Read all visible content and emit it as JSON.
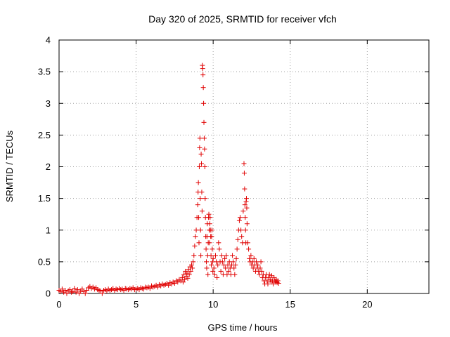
{
  "chart_data": {
    "type": "scatter",
    "title": "Day 320 of 2025, SRMTID for receiver vfch",
    "xlabel": "GPS time / hours",
    "ylabel": "SRMTID / TECUs",
    "xlim": [
      0,
      24
    ],
    "ylim": [
      0,
      4
    ],
    "xticks": [
      0,
      5,
      10,
      15,
      20
    ],
    "yticks": [
      0,
      0.5,
      1,
      1.5,
      2,
      2.5,
      3,
      3.5,
      4
    ],
    "ytick_labels": [
      "0",
      "0.5",
      "1",
      "1.5",
      "2",
      "2.5",
      "3",
      "3.5",
      "4"
    ],
    "xtick_labels": [
      "0",
      "5",
      "10",
      "15",
      "20"
    ],
    "grid": true,
    "marker": "+",
    "color": "#e00000",
    "series": [
      {
        "name": "SRMTID",
        "points": [
          [
            0.0,
            0.05
          ],
          [
            0.1,
            0.03
          ],
          [
            0.2,
            0.07
          ],
          [
            0.3,
            0.02
          ],
          [
            0.4,
            0.05
          ],
          [
            0.5,
            0.0
          ],
          [
            0.6,
            0.04
          ],
          [
            0.7,
            0.06
          ],
          [
            0.8,
            0.02
          ],
          [
            0.9,
            0.03
          ],
          [
            1.0,
            0.08
          ],
          [
            1.1,
            0.02
          ],
          [
            1.2,
            0.06
          ],
          [
            1.3,
            0.0
          ],
          [
            1.4,
            0.04
          ],
          [
            1.5,
            0.07
          ],
          [
            1.6,
            0.03
          ],
          [
            1.7,
            0.0
          ],
          [
            1.8,
            0.05
          ],
          [
            1.9,
            0.09
          ],
          [
            2.0,
            0.11
          ],
          [
            2.1,
            0.08
          ],
          [
            2.2,
            0.1
          ],
          [
            2.3,
            0.07
          ],
          [
            2.4,
            0.09
          ],
          [
            2.5,
            0.06
          ],
          [
            2.6,
            0.05
          ],
          [
            2.7,
            0.04
          ],
          [
            2.8,
            0.0
          ],
          [
            2.9,
            0.05
          ],
          [
            3.0,
            0.06
          ],
          [
            3.1,
            0.04
          ],
          [
            3.2,
            0.07
          ],
          [
            3.3,
            0.05
          ],
          [
            3.4,
            0.06
          ],
          [
            3.5,
            0.08
          ],
          [
            3.6,
            0.05
          ],
          [
            3.7,
            0.07
          ],
          [
            3.8,
            0.06
          ],
          [
            3.9,
            0.08
          ],
          [
            4.0,
            0.06
          ],
          [
            4.1,
            0.07
          ],
          [
            4.2,
            0.05
          ],
          [
            4.3,
            0.08
          ],
          [
            4.4,
            0.07
          ],
          [
            4.5,
            0.06
          ],
          [
            4.6,
            0.08
          ],
          [
            4.7,
            0.07
          ],
          [
            4.8,
            0.09
          ],
          [
            4.9,
            0.06
          ],
          [
            5.0,
            0.07
          ],
          [
            5.1,
            0.08
          ],
          [
            5.2,
            0.06
          ],
          [
            5.3,
            0.09
          ],
          [
            5.4,
            0.08
          ],
          [
            5.5,
            0.07
          ],
          [
            5.6,
            0.1
          ],
          [
            5.7,
            0.09
          ],
          [
            5.8,
            0.1
          ],
          [
            5.9,
            0.08
          ],
          [
            6.0,
            0.12
          ],
          [
            6.1,
            0.1
          ],
          [
            6.2,
            0.11
          ],
          [
            6.3,
            0.13
          ],
          [
            6.4,
            0.1
          ],
          [
            6.5,
            0.14
          ],
          [
            6.6,
            0.12
          ],
          [
            6.7,
            0.15
          ],
          [
            6.8,
            0.13
          ],
          [
            6.9,
            0.14
          ],
          [
            7.0,
            0.16
          ],
          [
            7.1,
            0.13
          ],
          [
            7.2,
            0.17
          ],
          [
            7.3,
            0.15
          ],
          [
            7.4,
            0.18
          ],
          [
            7.5,
            0.16
          ],
          [
            7.6,
            0.2
          ],
          [
            7.7,
            0.18
          ],
          [
            7.8,
            0.22
          ],
          [
            7.9,
            0.2
          ],
          [
            8.0,
            0.25
          ],
          [
            8.05,
            0.18
          ],
          [
            8.1,
            0.3
          ],
          [
            8.15,
            0.22
          ],
          [
            8.2,
            0.35
          ],
          [
            8.25,
            0.27
          ],
          [
            8.3,
            0.32
          ],
          [
            8.35,
            0.24
          ],
          [
            8.4,
            0.38
          ],
          [
            8.45,
            0.3
          ],
          [
            8.5,
            0.42
          ],
          [
            8.55,
            0.35
          ],
          [
            8.6,
            0.45
          ],
          [
            8.65,
            0.4
          ],
          [
            8.7,
            0.5
          ],
          [
            8.75,
            0.6
          ],
          [
            8.8,
            0.75
          ],
          [
            8.85,
            0.9
          ],
          [
            8.9,
            1.0
          ],
          [
            8.95,
            1.2
          ],
          [
            9.0,
            1.4
          ],
          [
            9.02,
            1.6
          ],
          [
            9.04,
            1.75
          ],
          [
            9.06,
            1.2
          ],
          [
            9.08,
            0.8
          ],
          [
            9.1,
            2.0
          ],
          [
            9.12,
            2.3
          ],
          [
            9.14,
            2.45
          ],
          [
            9.16,
            1.5
          ],
          [
            9.18,
            1.0
          ],
          [
            9.2,
            0.6
          ],
          [
            9.22,
            2.2
          ],
          [
            9.24,
            2.05
          ],
          [
            9.26,
            1.6
          ],
          [
            9.28,
            1.3
          ],
          [
            9.3,
            3.6
          ],
          [
            9.32,
            3.55
          ],
          [
            9.34,
            3.45
          ],
          [
            9.36,
            3.25
          ],
          [
            9.38,
            3.0
          ],
          [
            9.4,
            2.7
          ],
          [
            9.42,
            2.45
          ],
          [
            9.44,
            2.28
          ],
          [
            9.46,
            2.0
          ],
          [
            9.48,
            1.5
          ],
          [
            9.5,
            1.2
          ],
          [
            9.52,
            0.9
          ],
          [
            9.54,
            0.7
          ],
          [
            9.56,
            0.5
          ],
          [
            9.58,
            0.4
          ],
          [
            9.6,
            0.9
          ],
          [
            9.62,
            1.1
          ],
          [
            9.64,
            0.6
          ],
          [
            9.66,
            0.3
          ],
          [
            9.68,
            0.8
          ],
          [
            9.7,
            1.2
          ],
          [
            9.72,
            1.25
          ],
          [
            9.74,
            1.0
          ],
          [
            9.76,
            0.8
          ],
          [
            9.78,
            1.1
          ],
          [
            9.8,
            1.2
          ],
          [
            9.82,
            1.0
          ],
          [
            9.84,
            0.9
          ],
          [
            9.86,
            0.6
          ],
          [
            9.88,
            0.45
          ],
          [
            9.9,
            0.9
          ],
          [
            9.92,
            1.0
          ],
          [
            9.94,
            0.7
          ],
          [
            9.96,
            0.5
          ],
          [
            9.98,
            0.35
          ],
          [
            10.0,
            0.55
          ],
          [
            10.05,
            0.4
          ],
          [
            10.1,
            0.3
          ],
          [
            10.15,
            0.6
          ],
          [
            10.2,
            0.5
          ],
          [
            10.25,
            0.25
          ],
          [
            10.3,
            0.45
          ],
          [
            10.35,
            0.8
          ],
          [
            10.4,
            0.7
          ],
          [
            10.45,
            0.5
          ],
          [
            10.5,
            0.35
          ],
          [
            10.55,
            0.6
          ],
          [
            10.6,
            0.5
          ],
          [
            10.65,
            0.3
          ],
          [
            10.7,
            0.45
          ],
          [
            10.75,
            0.55
          ],
          [
            10.8,
            0.4
          ],
          [
            10.85,
            0.6
          ],
          [
            10.9,
            0.3
          ],
          [
            10.95,
            0.45
          ],
          [
            11.0,
            0.35
          ],
          [
            11.05,
            0.5
          ],
          [
            11.1,
            0.4
          ],
          [
            11.15,
            0.3
          ],
          [
            11.2,
            0.45
          ],
          [
            11.25,
            0.6
          ],
          [
            11.3,
            0.5
          ],
          [
            11.35,
            0.4
          ],
          [
            11.4,
            0.3
          ],
          [
            11.45,
            0.45
          ],
          [
            11.5,
            0.55
          ],
          [
            11.55,
            0.7
          ],
          [
            11.6,
            0.85
          ],
          [
            11.65,
            1.0
          ],
          [
            11.7,
            1.15
          ],
          [
            11.75,
            1.2
          ],
          [
            11.8,
            1.0
          ],
          [
            11.85,
            0.9
          ],
          [
            11.9,
            0.8
          ],
          [
            11.95,
            1.3
          ],
          [
            12.0,
            2.05
          ],
          [
            12.02,
            1.9
          ],
          [
            12.04,
            1.65
          ],
          [
            12.06,
            1.4
          ],
          [
            12.08,
            1.2
          ],
          [
            12.1,
            1.0
          ],
          [
            12.12,
            0.8
          ],
          [
            12.14,
            1.45
          ],
          [
            12.16,
            1.5
          ],
          [
            12.18,
            1.35
          ],
          [
            12.2,
            1.1
          ],
          [
            12.25,
            0.8
          ],
          [
            12.3,
            0.7
          ],
          [
            12.35,
            0.55
          ],
          [
            12.4,
            0.5
          ],
          [
            12.45,
            0.6
          ],
          [
            12.5,
            0.45
          ],
          [
            12.55,
            0.5
          ],
          [
            12.6,
            0.4
          ],
          [
            12.65,
            0.55
          ],
          [
            12.7,
            0.45
          ],
          [
            12.75,
            0.35
          ],
          [
            12.8,
            0.5
          ],
          [
            12.85,
            0.4
          ],
          [
            12.9,
            0.45
          ],
          [
            12.95,
            0.35
          ],
          [
            13.0,
            0.3
          ],
          [
            13.05,
            0.4
          ],
          [
            13.1,
            0.5
          ],
          [
            13.15,
            0.35
          ],
          [
            13.2,
            0.25
          ],
          [
            13.25,
            0.3
          ],
          [
            13.3,
            0.2
          ],
          [
            13.35,
            0.15
          ],
          [
            13.4,
            0.25
          ],
          [
            13.45,
            0.3
          ],
          [
            13.5,
            0.2
          ],
          [
            13.55,
            0.15
          ],
          [
            13.6,
            0.25
          ],
          [
            13.65,
            0.3
          ],
          [
            13.7,
            0.22
          ],
          [
            13.75,
            0.18
          ],
          [
            13.8,
            0.28
          ],
          [
            13.85,
            0.2
          ],
          [
            13.9,
            0.15
          ],
          [
            13.95,
            0.25
          ],
          [
            14.0,
            0.2
          ],
          [
            14.05,
            0.18
          ],
          [
            14.1,
            0.22
          ],
          [
            14.15,
            0.17
          ],
          [
            14.2,
            0.2
          ],
          [
            14.25,
            0.16
          ]
        ]
      }
    ]
  }
}
